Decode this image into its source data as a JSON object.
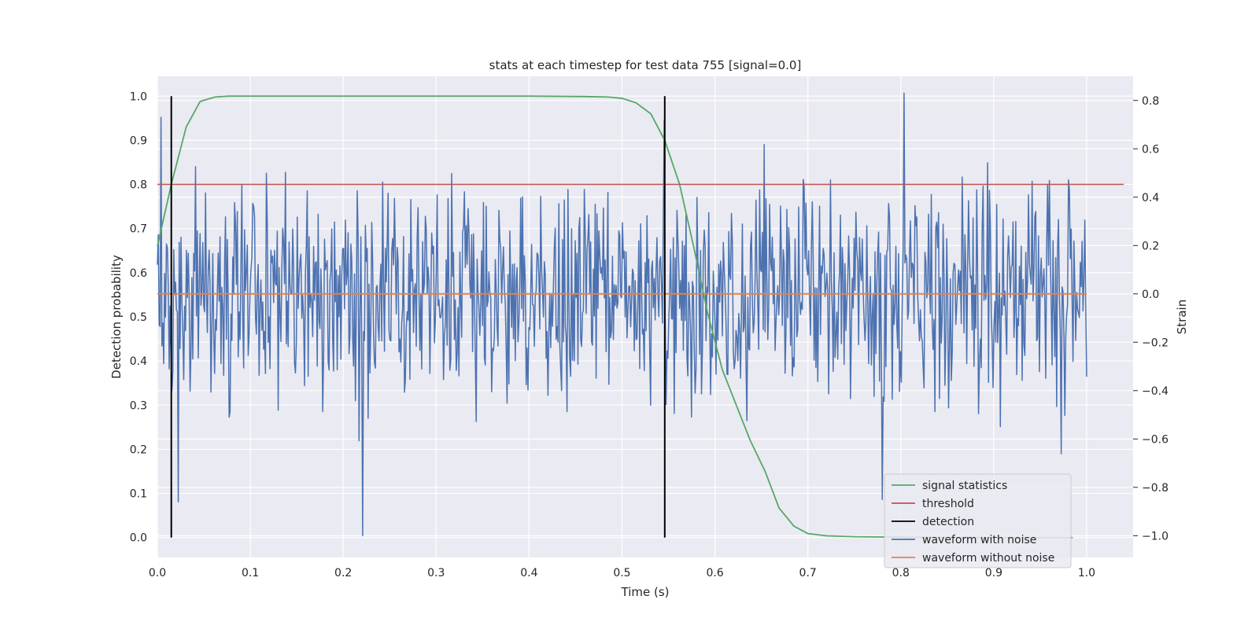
{
  "chart_data": {
    "type": "line",
    "title": "stats at each timestep for test data 755 [signal=0.0]",
    "xlabel": "Time (s)",
    "ylabel_left": "Detection probability",
    "ylabel_right": "Strain",
    "xlim": [
      0.0,
      1.05
    ],
    "ylim_left": [
      -0.045,
      1.045
    ],
    "ylim_right": [
      -1.09,
      0.9
    ],
    "x_ticks": [
      0.0,
      0.1,
      0.2,
      0.3,
      0.4,
      0.5,
      0.6,
      0.7,
      0.8,
      0.9,
      1.0
    ],
    "x_tick_labels": [
      "0.0",
      "0.1",
      "0.2",
      "0.3",
      "0.4",
      "0.5",
      "0.6",
      "0.7",
      "0.8",
      "0.9",
      "1.0"
    ],
    "y_left_ticks": [
      0.0,
      0.1,
      0.2,
      0.3,
      0.4,
      0.5,
      0.6,
      0.7,
      0.8,
      0.9,
      1.0
    ],
    "y_left_tick_labels": [
      "0.0",
      "0.1",
      "0.2",
      "0.3",
      "0.4",
      "0.5",
      "0.6",
      "0.7",
      "0.8",
      "0.9",
      "1.0"
    ],
    "y_right_ticks": [
      -1.0,
      -0.8,
      -0.6,
      -0.4,
      -0.2,
      0.0,
      0.2,
      0.4,
      0.6,
      0.8
    ],
    "y_right_tick_labels": [
      "−1.0",
      "−0.8",
      "−0.6",
      "−0.4",
      "−0.2",
      "0.0",
      "0.2",
      "0.4",
      "0.6",
      "0.8"
    ],
    "grid": true,
    "legend_position": "bottom-right",
    "legend": [
      {
        "label": "signal statistics",
        "color": "#55a868"
      },
      {
        "label": "threshold",
        "color": "#c44e52"
      },
      {
        "label": "detection",
        "color": "#000000"
      },
      {
        "label": "waveform with noise",
        "color": "#4c72b0"
      },
      {
        "label": "waveform without noise",
        "color": "#dd8452"
      }
    ],
    "signal_statistics": {
      "axis": "left",
      "color": "#55a868",
      "x": [
        0.0,
        0.015,
        0.031,
        0.046,
        0.062,
        0.077,
        0.1,
        0.2,
        0.3,
        0.4,
        0.46,
        0.485,
        0.5,
        0.515,
        0.531,
        0.546,
        0.562,
        0.577,
        0.592,
        0.608,
        0.623,
        0.638,
        0.654,
        0.669,
        0.685,
        0.7,
        0.72,
        0.75,
        0.8,
        0.9,
        0.985
      ],
      "values": [
        0.66,
        0.8,
        0.93,
        0.988,
        0.998,
        1.0,
        1.0,
        1.0,
        1.0,
        1.0,
        0.999,
        0.998,
        0.995,
        0.985,
        0.96,
        0.9,
        0.8,
        0.66,
        0.51,
        0.38,
        0.3,
        0.22,
        0.15,
        0.067,
        0.026,
        0.009,
        0.004,
        0.002,
        0.001,
        0.0,
        0.0
      ]
    },
    "threshold": {
      "axis": "left",
      "color": "#c44e52",
      "value": 0.8,
      "x_range": [
        0.0,
        1.04
      ]
    },
    "detection": {
      "axis": "left",
      "color": "#000000",
      "x": [
        0.015,
        0.546
      ],
      "y_range": [
        0.0,
        1.0
      ]
    },
    "waveform_without_noise": {
      "axis": "right",
      "color": "#dd8452",
      "value": 0.0,
      "x_range": [
        0.0,
        1.0
      ]
    },
    "waveform_with_noise": {
      "axis": "right",
      "color": "#4c72b0",
      "sample_count": 1024,
      "x_range": [
        0.0,
        1.0
      ],
      "min": -1.0,
      "max": 0.83,
      "std": 0.22,
      "peaks": [
        {
          "x": 0.004,
          "value": 0.73
        },
        {
          "x": 0.022,
          "value": -0.86
        },
        {
          "x": 0.221,
          "value": -1.0
        },
        {
          "x": 0.804,
          "value": 0.83
        },
        {
          "x": 0.78,
          "value": -0.85
        }
      ]
    }
  }
}
